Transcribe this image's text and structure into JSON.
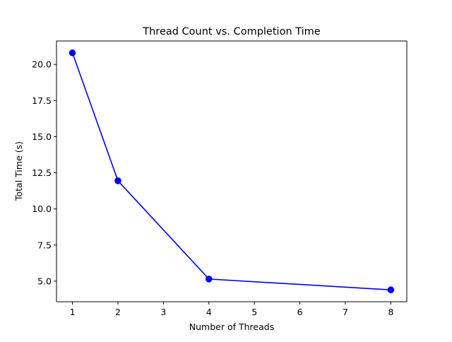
{
  "chart_data": {
    "type": "line",
    "title": "Thread Count vs. Completion Time",
    "xlabel": "Number of Threads",
    "ylabel": "Total Time (s)",
    "x": [
      1,
      2,
      4,
      8
    ],
    "series": [
      {
        "values": [
          20.8,
          11.95,
          5.15,
          4.4
        ],
        "color": "#0000ff",
        "marker": "circle"
      }
    ],
    "xlim": [
      0.65,
      8.35
    ],
    "ylim": [
      3.58,
      21.62
    ],
    "xticks": [
      1,
      2,
      3,
      4,
      5,
      6,
      7,
      8
    ],
    "xtick_labels": [
      "1",
      "2",
      "3",
      "4",
      "5",
      "6",
      "7",
      "8"
    ],
    "yticks": [
      5.0,
      7.5,
      10.0,
      12.5,
      15.0,
      17.5,
      20.0
    ],
    "ytick_labels": [
      "5.0",
      "7.5",
      "10.0",
      "12.5",
      "15.0",
      "17.5",
      "20.0"
    ],
    "grid": false,
    "legend": "none"
  }
}
